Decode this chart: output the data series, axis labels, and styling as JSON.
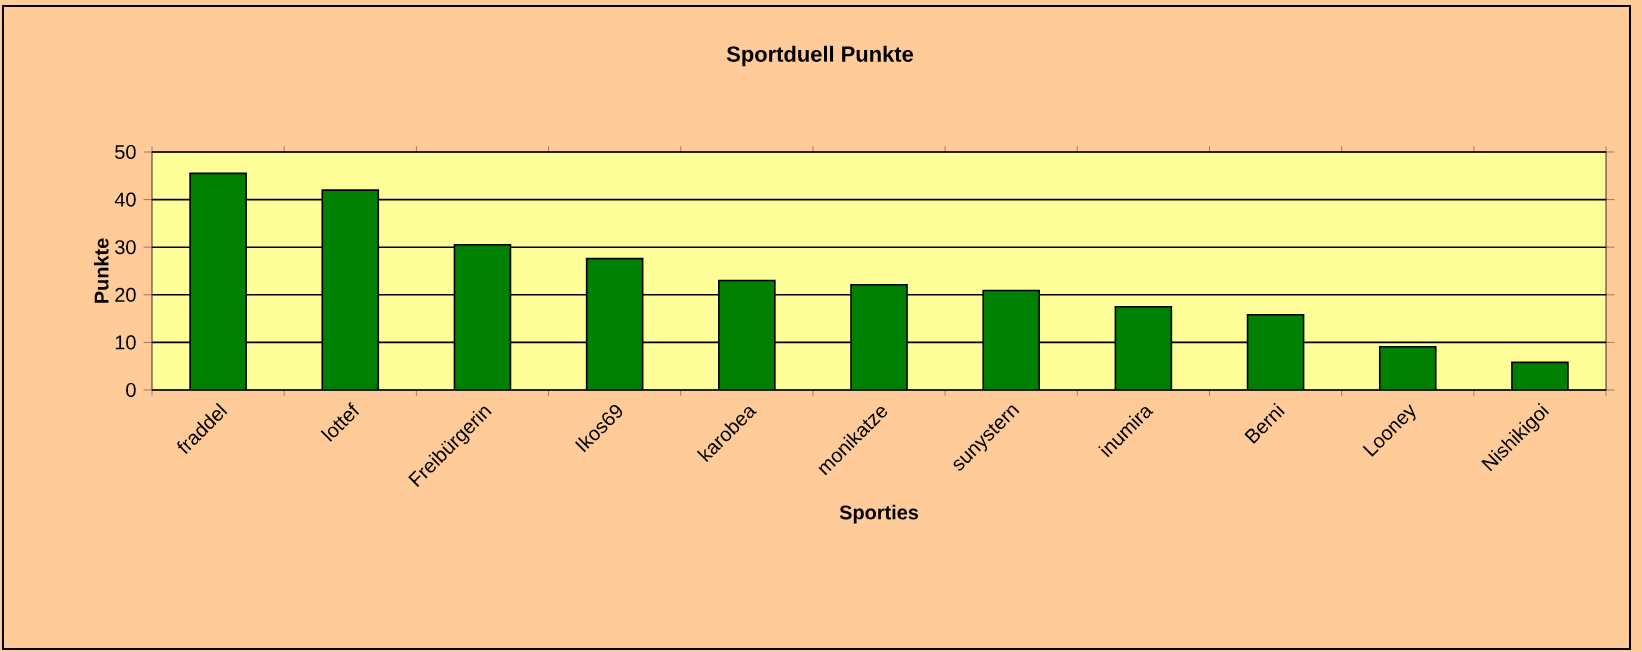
{
  "chart_data": {
    "type": "bar",
    "title": "Sportduell Punkte",
    "xlabel": "Sporties",
    "ylabel": "Punkte",
    "categories": [
      "fraddel",
      "lottef",
      "Freibürgerin",
      "Ikos69",
      "karobea",
      "monikatze",
      "sunystern",
      "inumira",
      "Berni",
      "Looney",
      "Nishikigoi"
    ],
    "values": [
      45.5,
      42,
      30.5,
      27.6,
      23,
      22.1,
      20.9,
      17.5,
      15.8,
      9.1,
      5.8
    ],
    "color": "#008000",
    "ylim": [
      0,
      50
    ],
    "yticks": [
      0,
      10,
      20,
      30,
      40,
      50
    ],
    "grid": "y"
  }
}
